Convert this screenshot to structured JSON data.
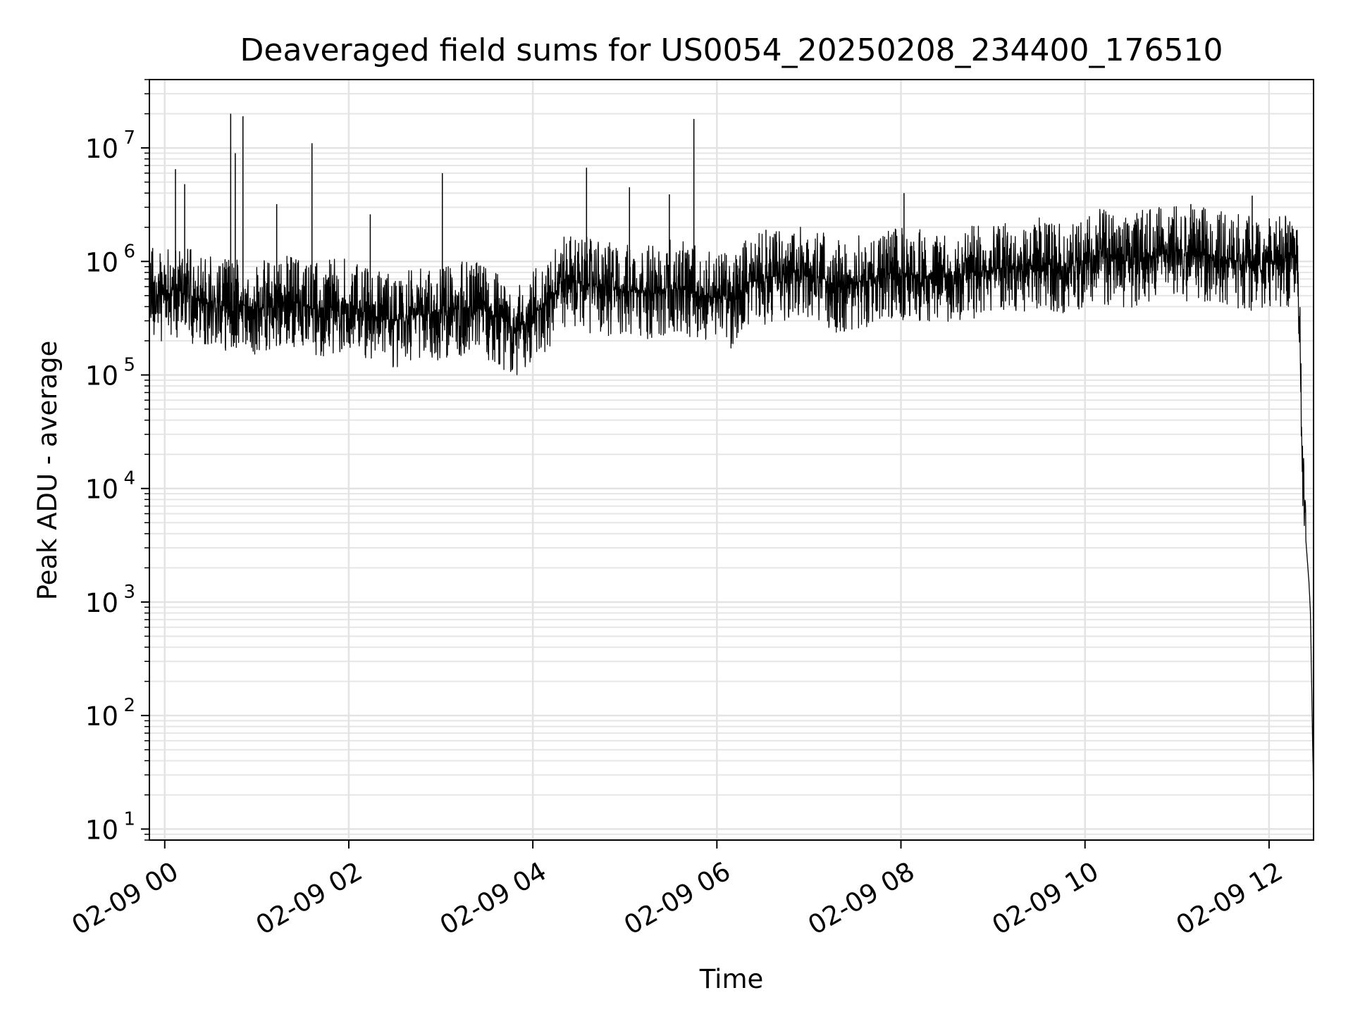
{
  "chart_data": {
    "type": "line",
    "title": "Deaveraged field sums for US0054_20250208_234400_176510",
    "xlabel": "Time",
    "ylabel": "Peak ADU - average",
    "yscale": "log",
    "xlim": [
      "02-08 23:50",
      "02-09 12:29"
    ],
    "ylim": [
      8,
      40000000
    ],
    "grid": true,
    "grid_minor": true,
    "line_color": "#000000",
    "x_ticks": [
      "02-09 00",
      "02-09 02",
      "02-09 04",
      "02-09 06",
      "02-09 08",
      "02-09 10",
      "02-09 12"
    ],
    "y_ticks": [
      {
        "value": 10,
        "base": "10",
        "exp": "1"
      },
      {
        "value": 100,
        "base": "10",
        "exp": "2"
      },
      {
        "value": 1000,
        "base": "10",
        "exp": "3"
      },
      {
        "value": 10000,
        "base": "10",
        "exp": "4"
      },
      {
        "value": 100000,
        "base": "10",
        "exp": "5"
      },
      {
        "value": 1000000,
        "base": "10",
        "exp": "6"
      },
      {
        "value": 10000000,
        "base": "10",
        "exp": "7"
      }
    ],
    "series": [
      {
        "x": [
          "02-08 23:50",
          "02-09 00:00",
          "02-09 00:10",
          "02-09 00:20",
          "02-09 00:30",
          "02-09 00:40",
          "02-09 00:50",
          "02-09 01:00",
          "02-09 01:10",
          "02-09 01:20",
          "02-09 01:30",
          "02-09 01:40",
          "02-09 01:50",
          "02-09 02:00",
          "02-09 02:10",
          "02-09 02:20",
          "02-09 02:30",
          "02-09 02:40",
          "02-09 02:50",
          "02-09 03:00",
          "02-09 03:10",
          "02-09 03:20",
          "02-09 03:30",
          "02-09 03:40",
          "02-09 03:50",
          "02-09 04:00",
          "02-09 04:10",
          "02-09 04:20",
          "02-09 04:30",
          "02-09 04:40",
          "02-09 04:50",
          "02-09 05:00",
          "02-09 05:10",
          "02-09 05:20",
          "02-09 05:30",
          "02-09 05:40",
          "02-09 05:50",
          "02-09 06:00",
          "02-09 06:10",
          "02-09 06:20",
          "02-09 06:30",
          "02-09 06:40",
          "02-09 06:50",
          "02-09 07:00",
          "02-09 07:10",
          "02-09 07:20",
          "02-09 07:30",
          "02-09 07:40",
          "02-09 07:50",
          "02-09 08:00",
          "02-09 08:10",
          "02-09 08:20",
          "02-09 08:30",
          "02-09 08:40",
          "02-09 08:50",
          "02-09 09:00",
          "02-09 09:10",
          "02-09 09:20",
          "02-09 09:30",
          "02-09 09:40",
          "02-09 09:50",
          "02-09 10:00",
          "02-09 10:10",
          "02-09 10:20",
          "02-09 10:30",
          "02-09 10:40",
          "02-09 10:50",
          "02-09 11:00",
          "02-09 11:10",
          "02-09 11:20",
          "02-09 11:30",
          "02-09 11:40",
          "02-09 11:50",
          "02-09 12:00",
          "02-09 12:10",
          "02-09 12:15",
          "02-09 12:18",
          "02-09 12:20",
          "02-09 12:22",
          "02-09 12:24",
          "02-09 12:26",
          "02-09 12:27",
          "02-09 12:28",
          "02-09 12:29"
        ],
        "y": [
          600000,
          500000,
          550000,
          480000,
          450000,
          400000,
          420000,
          380000,
          400000,
          450000,
          420000,
          380000,
          400000,
          420000,
          350000,
          320000,
          300000,
          330000,
          340000,
          350000,
          380000,
          400000,
          360000,
          300000,
          250000,
          350000,
          420000,
          700000,
          650000,
          600000,
          580000,
          550000,
          560000,
          520000,
          600000,
          560000,
          500000,
          480000,
          450000,
          650000,
          700000,
          750000,
          800000,
          750000,
          700000,
          600000,
          650000,
          700000,
          720000,
          800000,
          750000,
          700000,
          760000,
          780000,
          800000,
          850000,
          900000,
          950000,
          1000000,
          920000,
          900000,
          1000000,
          1100000,
          1050000,
          1000000,
          1100000,
          1150000,
          1200000,
          1100000,
          1150000,
          1100000,
          1000000,
          950000,
          1000000,
          1000000,
          1100000,
          950000,
          200000,
          10000,
          3500,
          1500,
          800,
          120,
          20
        ]
      }
    ],
    "spikes": [
      {
        "x": "02-09 00:07",
        "y": 6500000
      },
      {
        "x": "02-09 00:13",
        "y": 4800000
      },
      {
        "x": "02-09 00:43",
        "y": 20000000
      },
      {
        "x": "02-09 00:46",
        "y": 9000000
      },
      {
        "x": "02-09 00:51",
        "y": 19000000
      },
      {
        "x": "02-09 01:13",
        "y": 3200000
      },
      {
        "x": "02-09 01:36",
        "y": 11000000
      },
      {
        "x": "02-09 02:14",
        "y": 2600000
      },
      {
        "x": "02-09 03:01",
        "y": 6000000
      },
      {
        "x": "02-09 04:35",
        "y": 6700000
      },
      {
        "x": "02-09 05:03",
        "y": 4500000
      },
      {
        "x": "02-09 05:29",
        "y": 3900000
      },
      {
        "x": "02-09 05:45",
        "y": 18000000
      },
      {
        "x": "02-09 06:32",
        "y": 1900000
      },
      {
        "x": "02-09 08:02",
        "y": 4000000
      },
      {
        "x": "02-09 11:09",
        "y": 3200000
      },
      {
        "x": "02-09 11:49",
        "y": 3800000
      }
    ]
  }
}
